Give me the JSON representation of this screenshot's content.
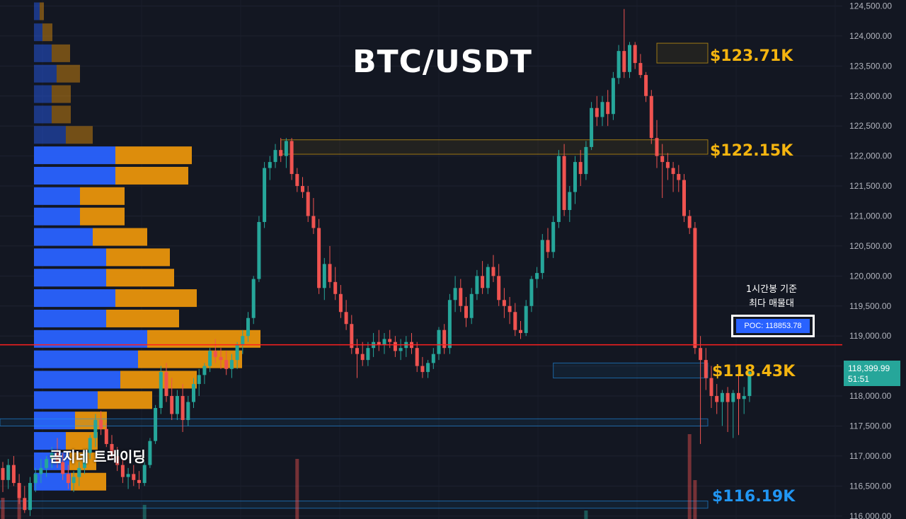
{
  "title": "BTC/USDT",
  "watermark": "곰지네 트레이딩",
  "poc_note_line1": "1시간봉 기준",
  "poc_note_line2": "최다 매물대",
  "poc_label": "POC: 118853.78",
  "current_price": "118,399.99",
  "countdown": "51:51",
  "levels": [
    {
      "label": "$123.71K",
      "color": "#f5b50f"
    },
    {
      "label": "$122.15K",
      "color": "#f5b50f"
    },
    {
      "label": "$118.43K",
      "color": "#f5b50f"
    },
    {
      "label": "$116.19K",
      "color": "#2196f3"
    }
  ],
  "colors": {
    "background": "#131722",
    "up": "#26a69a",
    "down": "#ef5350",
    "vp_buy": "#2962ff",
    "vp_sell": "#e8940c",
    "poc_line": "#ff1f1f",
    "accent_gold": "#f5b50f",
    "accent_blue": "#2196f3"
  },
  "chart_data": {
    "type": "candlestick",
    "title": "BTC/USDT",
    "timeframe_note": "1시간봉 기준",
    "y_axis": {
      "position": "right",
      "min": 115950,
      "max": 124600,
      "tick_labels": [
        "124,500.00",
        "124,000.00",
        "123,500.00",
        "123,000.00",
        "122,500.00",
        "122,000.00",
        "121,500.00",
        "121,000.00",
        "120,500.00",
        "120,000.00",
        "119,500.00",
        "119,000.00",
        "118,500.00",
        "118,000.00",
        "117,500.00",
        "117,000.00",
        "116,500.00",
        "116,000.00"
      ],
      "ticks": [
        124500,
        124000,
        123500,
        123000,
        122500,
        122000,
        121500,
        121000,
        120500,
        120000,
        119500,
        119000,
        118500,
        118000,
        117500,
        117000,
        116500,
        116000
      ]
    },
    "poc_price": 118853.78,
    "current_price": 118399.99,
    "levels": [
      123710,
      122150,
      118430,
      116190
    ],
    "zones": [
      {
        "x0": 120,
        "x1": 162,
        "low": 123550,
        "high": 123880,
        "kind": "resistance"
      },
      {
        "x0": 51,
        "x1": 162,
        "low": 122030,
        "high": 122270,
        "kind": "resistance"
      },
      {
        "x0": 137,
        "x1": 162,
        "low": 118300,
        "high": 118550,
        "kind": "support"
      },
      {
        "x0": 101,
        "x1": 152,
        "low": 118300,
        "high": 118550,
        "kind": "support"
      },
      {
        "x0": -5,
        "x1": 152,
        "low": 117500,
        "high": 117620,
        "kind": "support"
      },
      {
        "x0": -5,
        "x1": 162,
        "low": 116130,
        "high": 116250,
        "kind": "support"
      }
    ],
    "candles": [
      [
        116800,
        116900,
        116400,
        116600
      ],
      [
        116600,
        116950,
        116450,
        116850
      ],
      [
        116850,
        117000,
        116500,
        116550
      ],
      [
        116550,
        116700,
        116200,
        116300
      ],
      [
        116300,
        116500,
        116050,
        116100
      ],
      [
        116100,
        116650,
        116000,
        116550
      ],
      [
        116550,
        116800,
        116400,
        116700
      ],
      [
        116700,
        116950,
        116550,
        116800
      ],
      [
        116800,
        117000,
        116650,
        116950
      ],
      [
        116950,
        117150,
        116800,
        117050
      ],
      [
        117050,
        117300,
        116800,
        116900
      ],
      [
        116900,
        117050,
        116600,
        116700
      ],
      [
        116700,
        116850,
        116450,
        116550
      ],
      [
        116550,
        116750,
        116400,
        116650
      ],
      [
        116650,
        116900,
        116500,
        116800
      ],
      [
        116800,
        117100,
        116700,
        117050
      ],
      [
        117050,
        117350,
        116950,
        117300
      ],
      [
        117300,
        117700,
        117150,
        117600
      ],
      [
        117600,
        117750,
        117350,
        117450
      ],
      [
        117450,
        117550,
        117150,
        117200
      ],
      [
        117200,
        117350,
        116950,
        117000
      ],
      [
        117000,
        117150,
        116750,
        116850
      ],
      [
        116850,
        116950,
        116550,
        116650
      ],
      [
        116650,
        116800,
        116450,
        116700
      ],
      [
        116700,
        116850,
        116500,
        116600
      ],
      [
        116600,
        116750,
        116450,
        116550
      ],
      [
        116550,
        116900,
        116500,
        116850
      ],
      [
        116850,
        117300,
        116800,
        117250
      ],
      [
        117250,
        117850,
        117200,
        117800
      ],
      [
        117800,
        118500,
        117700,
        118400
      ],
      [
        118400,
        118550,
        117900,
        118000
      ],
      [
        118000,
        118300,
        117600,
        117700
      ],
      [
        117700,
        118100,
        117600,
        118000
      ],
      [
        118000,
        118200,
        117400,
        117600
      ],
      [
        117600,
        118000,
        117500,
        117900
      ],
      [
        117900,
        118300,
        117800,
        118200
      ],
      [
        118200,
        118450,
        118000,
        118350
      ],
      [
        118350,
        118550,
        118200,
        118500
      ],
      [
        118500,
        118800,
        118400,
        118750
      ],
      [
        118750,
        118950,
        118550,
        118650
      ],
      [
        118650,
        118800,
        118450,
        118600
      ],
      [
        118600,
        118750,
        118350,
        118450
      ],
      [
        118450,
        118700,
        118300,
        118600
      ],
      [
        118600,
        118900,
        118450,
        118850
      ],
      [
        118850,
        119100,
        118700,
        119000
      ],
      [
        119000,
        119400,
        118900,
        119300
      ],
      [
        119300,
        120000,
        119200,
        119950
      ],
      [
        119950,
        121000,
        119900,
        120900
      ],
      [
        120900,
        121900,
        120800,
        121800
      ],
      [
        121800,
        122000,
        121600,
        121900
      ],
      [
        121900,
        122200,
        121800,
        122100
      ],
      [
        122100,
        122300,
        121900,
        122000
      ],
      [
        122000,
        122300,
        121800,
        122250
      ],
      [
        122250,
        122300,
        121600,
        121700
      ],
      [
        121700,
        121800,
        121400,
        121500
      ],
      [
        121500,
        121650,
        121300,
        121400
      ],
      [
        121400,
        121500,
        120900,
        121000
      ],
      [
        121000,
        121300,
        120700,
        120800
      ],
      [
        120800,
        120950,
        119700,
        119800
      ],
      [
        119800,
        120300,
        119600,
        120200
      ],
      [
        120200,
        120500,
        119800,
        119900
      ],
      [
        119900,
        120150,
        119600,
        119700
      ],
      [
        119700,
        119850,
        119300,
        119400
      ],
      [
        119400,
        119600,
        119100,
        119200
      ],
      [
        119200,
        119350,
        118700,
        118800
      ],
      [
        118800,
        118950,
        118300,
        118700
      ],
      [
        118700,
        118900,
        118500,
        118600
      ],
      [
        118600,
        118900,
        118500,
        118800
      ],
      [
        118800,
        119050,
        118650,
        118900
      ],
      [
        118900,
        119100,
        118750,
        118850
      ],
      [
        118850,
        119050,
        118700,
        118950
      ],
      [
        118950,
        119100,
        118800,
        118900
      ],
      [
        118900,
        119000,
        118650,
        118750
      ],
      [
        118750,
        118950,
        118600,
        118800
      ],
      [
        118800,
        119000,
        118650,
        118900
      ],
      [
        118900,
        119050,
        118700,
        118800
      ],
      [
        118800,
        118900,
        118400,
        118500
      ],
      [
        118500,
        118650,
        118300,
        118400
      ],
      [
        118400,
        118600,
        118300,
        118550
      ],
      [
        118550,
        118800,
        118450,
        118700
      ],
      [
        118700,
        119150,
        118600,
        119100
      ],
      [
        119100,
        119200,
        118700,
        118800
      ],
      [
        118800,
        119700,
        118700,
        119600
      ],
      [
        119600,
        120000,
        119400,
        119800
      ],
      [
        119800,
        119950,
        119400,
        119500
      ],
      [
        119500,
        119650,
        119150,
        119300
      ],
      [
        119300,
        119800,
        119200,
        119700
      ],
      [
        119700,
        120100,
        119600,
        120000
      ],
      [
        120000,
        120250,
        119700,
        119800
      ],
      [
        119800,
        120200,
        119700,
        120150
      ],
      [
        120150,
        120350,
        119900,
        120000
      ],
      [
        120000,
        120200,
        119500,
        119600
      ],
      [
        119600,
        119800,
        119300,
        119500
      ],
      [
        119500,
        119650,
        119200,
        119400
      ],
      [
        119400,
        119550,
        119000,
        119100
      ],
      [
        119100,
        119250,
        118950,
        119050
      ],
      [
        119050,
        119600,
        119000,
        119500
      ],
      [
        119500,
        120000,
        119400,
        119950
      ],
      [
        119950,
        120150,
        119800,
        120050
      ],
      [
        120050,
        120700,
        119950,
        120600
      ],
      [
        120600,
        120800,
        120300,
        120400
      ],
      [
        120400,
        121000,
        120300,
        120900
      ],
      [
        120900,
        122100,
        120800,
        122000
      ],
      [
        122000,
        122200,
        121000,
        121100
      ],
      [
        121100,
        121500,
        120900,
        121400
      ],
      [
        121400,
        122000,
        121200,
        121900
      ],
      [
        121900,
        122100,
        121500,
        121700
      ],
      [
        121700,
        122250,
        121600,
        122150
      ],
      [
        122150,
        122900,
        122100,
        122800
      ],
      [
        122800,
        123000,
        122500,
        122650
      ],
      [
        122650,
        123000,
        122500,
        122900
      ],
      [
        122900,
        123100,
        122500,
        122700
      ],
      [
        122700,
        123400,
        122600,
        123300
      ],
      [
        123300,
        123850,
        123200,
        123750
      ],
      [
        123750,
        124450,
        123300,
        123400
      ],
      [
        123400,
        123900,
        123300,
        123850
      ],
      [
        123850,
        123900,
        123450,
        123550
      ],
      [
        123550,
        123700,
        123300,
        123350
      ],
      [
        123350,
        123400,
        122900,
        123000
      ],
      [
        123000,
        123100,
        122200,
        122300
      ],
      [
        122300,
        122600,
        121800,
        122000
      ],
      [
        122000,
        122200,
        121300,
        121900
      ],
      [
        121900,
        122050,
        121600,
        121800
      ],
      [
        121800,
        121900,
        121400,
        121700
      ],
      [
        121700,
        121850,
        121400,
        121600
      ],
      [
        121600,
        121700,
        120900,
        121000
      ],
      [
        121000,
        121100,
        120700,
        120800
      ],
      [
        120800,
        120900,
        118700,
        118800
      ],
      [
        118800,
        119000,
        117200,
        118600
      ],
      [
        118600,
        118800,
        118100,
        118300
      ],
      [
        118300,
        118500,
        117800,
        118000
      ],
      [
        118000,
        118200,
        117700,
        117900
      ],
      [
        117900,
        118100,
        117500,
        118050
      ],
      [
        118050,
        118150,
        117400,
        117900
      ],
      [
        117900,
        118100,
        117300,
        118050
      ],
      [
        118050,
        118400,
        117350,
        117950
      ],
      [
        117950,
        118150,
        117700,
        118000
      ],
      [
        118000,
        118450,
        117900,
        118400
      ]
    ],
    "volume_profile": [
      {
        "price": 124400,
        "buy": 8,
        "sell": 6
      },
      {
        "price": 124050,
        "buy": 12,
        "sell": 14
      },
      {
        "price": 123700,
        "buy": 25,
        "sell": 26
      },
      {
        "price": 123360,
        "buy": 32,
        "sell": 33
      },
      {
        "price": 123020,
        "buy": 25,
        "sell": 27
      },
      {
        "price": 122680,
        "buy": 25,
        "sell": 27
      },
      {
        "price": 122340,
        "buy": 45,
        "sell": 38
      },
      {
        "price": 122000,
        "buy": 115,
        "sell": 108
      },
      {
        "price": 121660,
        "buy": 115,
        "sell": 103
      },
      {
        "price": 121320,
        "buy": 65,
        "sell": 63
      },
      {
        "price": 120980,
        "buy": 65,
        "sell": 63
      },
      {
        "price": 120640,
        "buy": 83,
        "sell": 77
      },
      {
        "price": 120300,
        "buy": 102,
        "sell": 90
      },
      {
        "price": 119960,
        "buy": 102,
        "sell": 96
      },
      {
        "price": 119620,
        "buy": 115,
        "sell": 115
      },
      {
        "price": 119280,
        "buy": 102,
        "sell": 103
      },
      {
        "price": 118940,
        "buy": 160,
        "sell": 160
      },
      {
        "price": 118600,
        "buy": 147,
        "sell": 147
      },
      {
        "price": 118260,
        "buy": 122,
        "sell": 108
      },
      {
        "price": 117920,
        "buy": 90,
        "sell": 77
      },
      {
        "price": 117580,
        "buy": 58,
        "sell": 45
      },
      {
        "price": 117240,
        "buy": 45,
        "sell": 45
      },
      {
        "price": 116900,
        "buy": 50,
        "sell": 38
      },
      {
        "price": 116560,
        "buy": 52,
        "sell": 50
      }
    ],
    "volume_bars": [
      {
        "i": 0,
        "v": 30
      },
      {
        "i": 3,
        "v": 40
      },
      {
        "i": 26,
        "v": 20
      },
      {
        "i": 54,
        "v": 85
      },
      {
        "i": 107,
        "v": 12
      },
      {
        "i": 126,
        "v": 120
      },
      {
        "i": 127,
        "v": 55
      }
    ]
  }
}
